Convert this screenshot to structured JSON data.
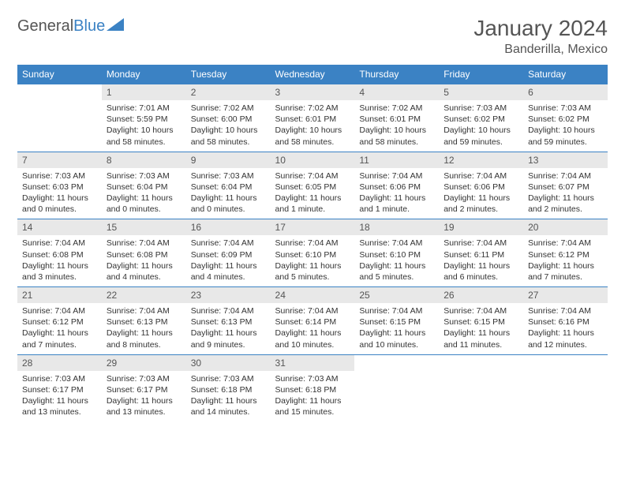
{
  "logo": {
    "text1": "General",
    "text2": "Blue"
  },
  "title": {
    "month": "January 2024",
    "location": "Banderilla, Mexico"
  },
  "colors": {
    "header_bg": "#3b82c4",
    "header_text": "#ffffff",
    "daynum_bg": "#e8e8e8",
    "border": "#3b82c4",
    "text": "#333333"
  },
  "daysOfWeek": [
    "Sunday",
    "Monday",
    "Tuesday",
    "Wednesday",
    "Thursday",
    "Friday",
    "Saturday"
  ],
  "weeks": [
    [
      {
        "n": "",
        "sunrise": "",
        "sunset": "",
        "daylight1": "",
        "daylight2": ""
      },
      {
        "n": "1",
        "sunrise": "Sunrise: 7:01 AM",
        "sunset": "Sunset: 5:59 PM",
        "daylight1": "Daylight: 10 hours",
        "daylight2": "and 58 minutes."
      },
      {
        "n": "2",
        "sunrise": "Sunrise: 7:02 AM",
        "sunset": "Sunset: 6:00 PM",
        "daylight1": "Daylight: 10 hours",
        "daylight2": "and 58 minutes."
      },
      {
        "n": "3",
        "sunrise": "Sunrise: 7:02 AM",
        "sunset": "Sunset: 6:01 PM",
        "daylight1": "Daylight: 10 hours",
        "daylight2": "and 58 minutes."
      },
      {
        "n": "4",
        "sunrise": "Sunrise: 7:02 AM",
        "sunset": "Sunset: 6:01 PM",
        "daylight1": "Daylight: 10 hours",
        "daylight2": "and 58 minutes."
      },
      {
        "n": "5",
        "sunrise": "Sunrise: 7:03 AM",
        "sunset": "Sunset: 6:02 PM",
        "daylight1": "Daylight: 10 hours",
        "daylight2": "and 59 minutes."
      },
      {
        "n": "6",
        "sunrise": "Sunrise: 7:03 AM",
        "sunset": "Sunset: 6:02 PM",
        "daylight1": "Daylight: 10 hours",
        "daylight2": "and 59 minutes."
      }
    ],
    [
      {
        "n": "7",
        "sunrise": "Sunrise: 7:03 AM",
        "sunset": "Sunset: 6:03 PM",
        "daylight1": "Daylight: 11 hours",
        "daylight2": "and 0 minutes."
      },
      {
        "n": "8",
        "sunrise": "Sunrise: 7:03 AM",
        "sunset": "Sunset: 6:04 PM",
        "daylight1": "Daylight: 11 hours",
        "daylight2": "and 0 minutes."
      },
      {
        "n": "9",
        "sunrise": "Sunrise: 7:03 AM",
        "sunset": "Sunset: 6:04 PM",
        "daylight1": "Daylight: 11 hours",
        "daylight2": "and 0 minutes."
      },
      {
        "n": "10",
        "sunrise": "Sunrise: 7:04 AM",
        "sunset": "Sunset: 6:05 PM",
        "daylight1": "Daylight: 11 hours",
        "daylight2": "and 1 minute."
      },
      {
        "n": "11",
        "sunrise": "Sunrise: 7:04 AM",
        "sunset": "Sunset: 6:06 PM",
        "daylight1": "Daylight: 11 hours",
        "daylight2": "and 1 minute."
      },
      {
        "n": "12",
        "sunrise": "Sunrise: 7:04 AM",
        "sunset": "Sunset: 6:06 PM",
        "daylight1": "Daylight: 11 hours",
        "daylight2": "and 2 minutes."
      },
      {
        "n": "13",
        "sunrise": "Sunrise: 7:04 AM",
        "sunset": "Sunset: 6:07 PM",
        "daylight1": "Daylight: 11 hours",
        "daylight2": "and 2 minutes."
      }
    ],
    [
      {
        "n": "14",
        "sunrise": "Sunrise: 7:04 AM",
        "sunset": "Sunset: 6:08 PM",
        "daylight1": "Daylight: 11 hours",
        "daylight2": "and 3 minutes."
      },
      {
        "n": "15",
        "sunrise": "Sunrise: 7:04 AM",
        "sunset": "Sunset: 6:08 PM",
        "daylight1": "Daylight: 11 hours",
        "daylight2": "and 4 minutes."
      },
      {
        "n": "16",
        "sunrise": "Sunrise: 7:04 AM",
        "sunset": "Sunset: 6:09 PM",
        "daylight1": "Daylight: 11 hours",
        "daylight2": "and 4 minutes."
      },
      {
        "n": "17",
        "sunrise": "Sunrise: 7:04 AM",
        "sunset": "Sunset: 6:10 PM",
        "daylight1": "Daylight: 11 hours",
        "daylight2": "and 5 minutes."
      },
      {
        "n": "18",
        "sunrise": "Sunrise: 7:04 AM",
        "sunset": "Sunset: 6:10 PM",
        "daylight1": "Daylight: 11 hours",
        "daylight2": "and 5 minutes."
      },
      {
        "n": "19",
        "sunrise": "Sunrise: 7:04 AM",
        "sunset": "Sunset: 6:11 PM",
        "daylight1": "Daylight: 11 hours",
        "daylight2": "and 6 minutes."
      },
      {
        "n": "20",
        "sunrise": "Sunrise: 7:04 AM",
        "sunset": "Sunset: 6:12 PM",
        "daylight1": "Daylight: 11 hours",
        "daylight2": "and 7 minutes."
      }
    ],
    [
      {
        "n": "21",
        "sunrise": "Sunrise: 7:04 AM",
        "sunset": "Sunset: 6:12 PM",
        "daylight1": "Daylight: 11 hours",
        "daylight2": "and 7 minutes."
      },
      {
        "n": "22",
        "sunrise": "Sunrise: 7:04 AM",
        "sunset": "Sunset: 6:13 PM",
        "daylight1": "Daylight: 11 hours",
        "daylight2": "and 8 minutes."
      },
      {
        "n": "23",
        "sunrise": "Sunrise: 7:04 AM",
        "sunset": "Sunset: 6:13 PM",
        "daylight1": "Daylight: 11 hours",
        "daylight2": "and 9 minutes."
      },
      {
        "n": "24",
        "sunrise": "Sunrise: 7:04 AM",
        "sunset": "Sunset: 6:14 PM",
        "daylight1": "Daylight: 11 hours",
        "daylight2": "and 10 minutes."
      },
      {
        "n": "25",
        "sunrise": "Sunrise: 7:04 AM",
        "sunset": "Sunset: 6:15 PM",
        "daylight1": "Daylight: 11 hours",
        "daylight2": "and 10 minutes."
      },
      {
        "n": "26",
        "sunrise": "Sunrise: 7:04 AM",
        "sunset": "Sunset: 6:15 PM",
        "daylight1": "Daylight: 11 hours",
        "daylight2": "and 11 minutes."
      },
      {
        "n": "27",
        "sunrise": "Sunrise: 7:04 AM",
        "sunset": "Sunset: 6:16 PM",
        "daylight1": "Daylight: 11 hours",
        "daylight2": "and 12 minutes."
      }
    ],
    [
      {
        "n": "28",
        "sunrise": "Sunrise: 7:03 AM",
        "sunset": "Sunset: 6:17 PM",
        "daylight1": "Daylight: 11 hours",
        "daylight2": "and 13 minutes."
      },
      {
        "n": "29",
        "sunrise": "Sunrise: 7:03 AM",
        "sunset": "Sunset: 6:17 PM",
        "daylight1": "Daylight: 11 hours",
        "daylight2": "and 13 minutes."
      },
      {
        "n": "30",
        "sunrise": "Sunrise: 7:03 AM",
        "sunset": "Sunset: 6:18 PM",
        "daylight1": "Daylight: 11 hours",
        "daylight2": "and 14 minutes."
      },
      {
        "n": "31",
        "sunrise": "Sunrise: 7:03 AM",
        "sunset": "Sunset: 6:18 PM",
        "daylight1": "Daylight: 11 hours",
        "daylight2": "and 15 minutes."
      },
      {
        "n": "",
        "sunrise": "",
        "sunset": "",
        "daylight1": "",
        "daylight2": ""
      },
      {
        "n": "",
        "sunrise": "",
        "sunset": "",
        "daylight1": "",
        "daylight2": ""
      },
      {
        "n": "",
        "sunrise": "",
        "sunset": "",
        "daylight1": "",
        "daylight2": ""
      }
    ]
  ]
}
